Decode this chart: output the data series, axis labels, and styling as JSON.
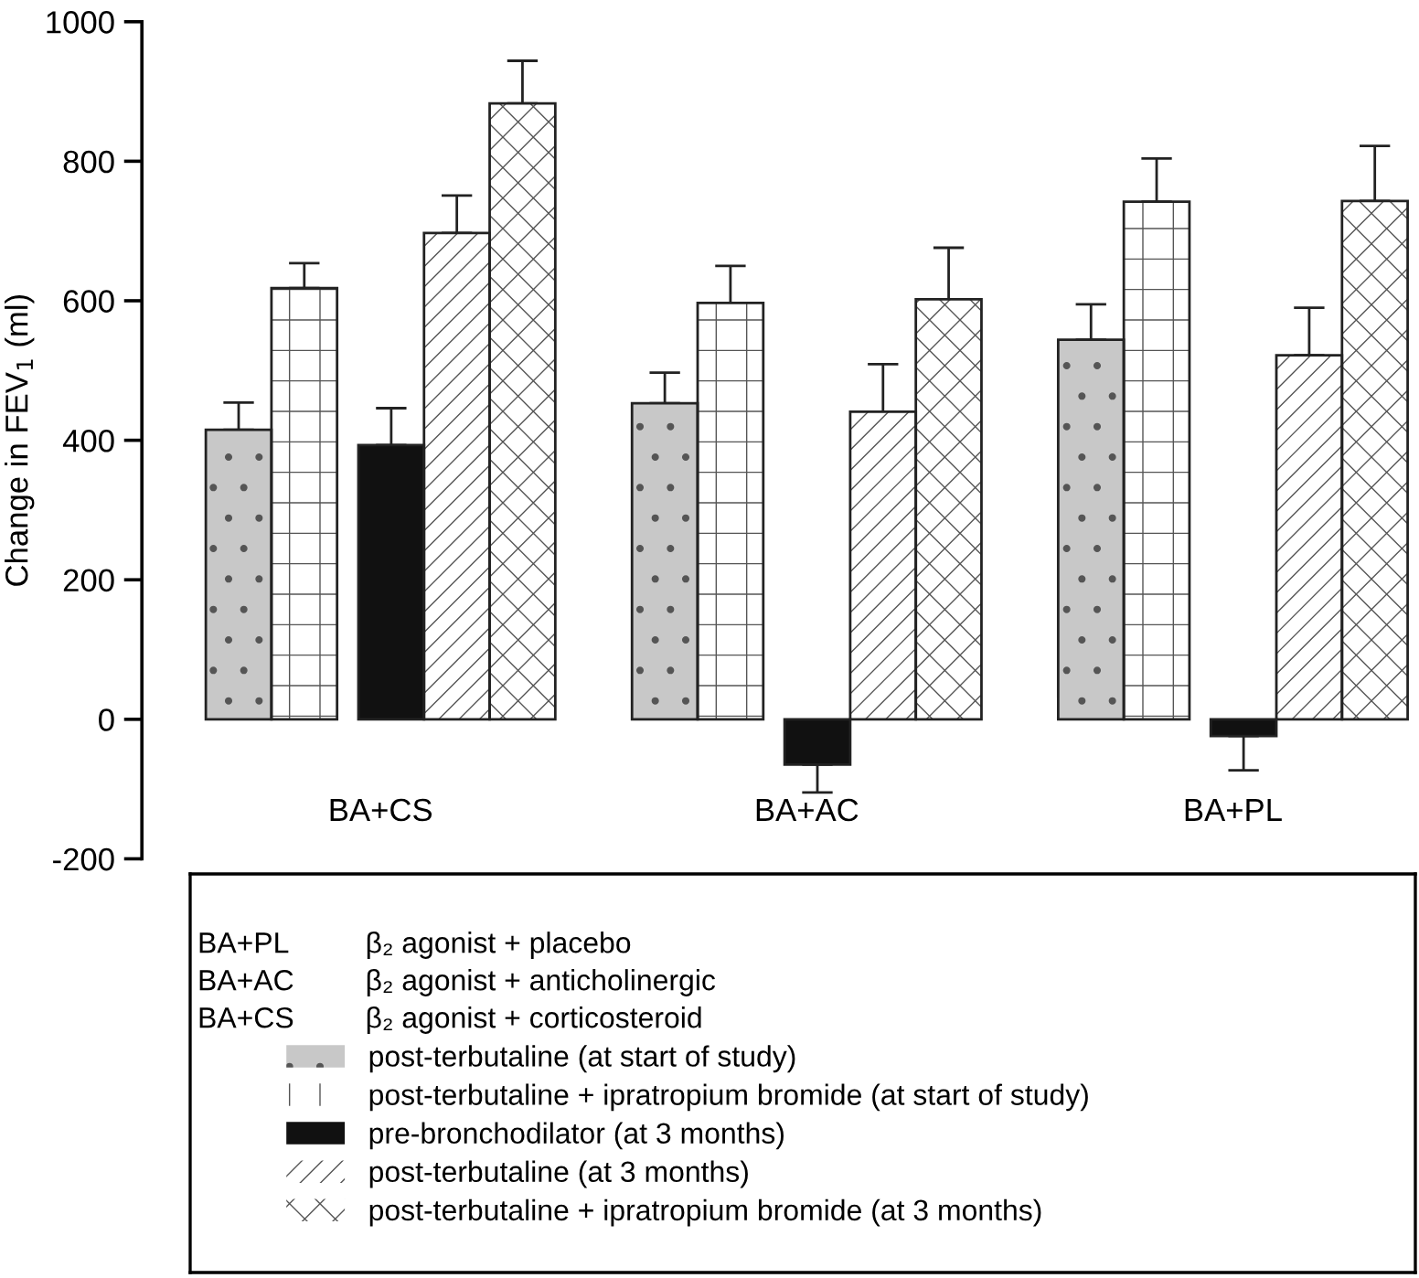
{
  "chart_data": {
    "type": "bar",
    "ylabel": "Change in FEV$_{1}$ (ml)",
    "categories": [
      "BA+CS",
      "BA+AC",
      "BA+PL"
    ],
    "series": [
      {
        "name": "post-terbutaline (at start of study)",
        "color": "#c8c8c8",
        "values": [
          415,
          453,
          544
        ],
        "errors": [
          [
            415,
            454
          ],
          [
            453,
            497
          ],
          [
            544,
            595
          ]
        ]
      },
      {
        "name": "post-terbutaline + ipratropium bromide (at start of study)",
        "color": "#ffffff",
        "values": [
          618,
          597,
          742
        ],
        "errors": [
          [
            618,
            654
          ],
          [
            597,
            650
          ],
          [
            742,
            804
          ]
        ]
      },
      {
        "name": "pre-bronchodilator (at 3 months)",
        "color": "#111111",
        "values": [
          393,
          -65,
          -24
        ],
        "errors": [
          [
            393,
            446
          ],
          [
            -105,
            -65
          ],
          [
            -73,
            -24
          ]
        ]
      },
      {
        "name": "post-terbutaline (at 3 months)",
        "color": "#ffffff",
        "values": [
          697,
          441,
          522
        ],
        "errors": [
          [
            697,
            751
          ],
          [
            441,
            509
          ],
          [
            522,
            590
          ]
        ]
      },
      {
        "name": "post-terbutaline + ipratropium bromide (at 3 months)",
        "color": "#ffffff",
        "values": [
          883,
          602,
          743
        ],
        "errors": [
          [
            883,
            944
          ],
          [
            602,
            676
          ],
          [
            743,
            822
          ]
        ]
      }
    ],
    "ylim": [
      -200,
      1000
    ],
    "yticks": [
      -200,
      0,
      200,
      400,
      600,
      800,
      1000
    ],
    "grid": false,
    "legend": "bottom",
    "annotations": [
      "BA+PL",
      "β₂ agonist + placebo",
      "BA+AC",
      "β₂ agonist + anticholinergic",
      "BA+CS",
      "β₂ agonist + corticosteroid"
    ]
  }
}
